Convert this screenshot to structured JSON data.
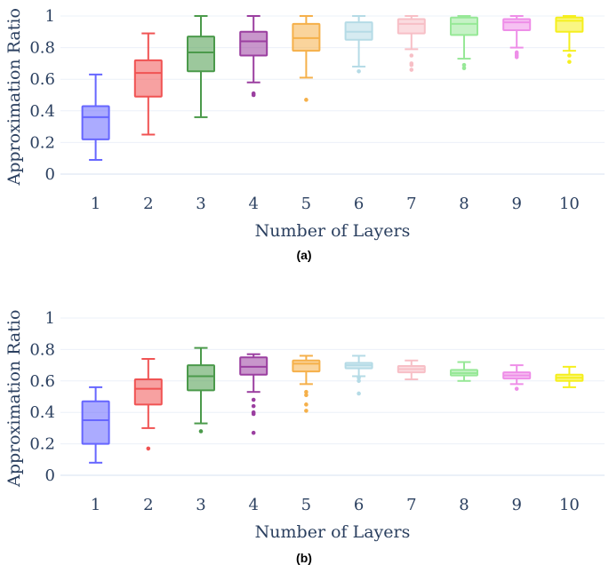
{
  "chart_data": [
    {
      "type": "box",
      "caption": "(a)",
      "xlabel": "Number of Layers",
      "ylabel": "Approximation Ratio",
      "categories": [
        "1",
        "2",
        "3",
        "4",
        "5",
        "6",
        "7",
        "8",
        "9",
        "10"
      ],
      "yticks": [
        "0",
        "0.2",
        "0.4",
        "0.6",
        "0.8",
        "1"
      ],
      "ylim": [
        -0.06,
        1.04
      ],
      "grid": true,
      "boxes": [
        {
          "min": 0.09,
          "q1": 0.22,
          "median": 0.36,
          "q3": 0.43,
          "max": 0.63,
          "outliers": [],
          "color": "#6666ff"
        },
        {
          "min": 0.25,
          "q1": 0.49,
          "median": 0.64,
          "q3": 0.72,
          "max": 0.89,
          "outliers": [],
          "color": "#f05353"
        },
        {
          "min": 0.36,
          "q1": 0.65,
          "median": 0.77,
          "q3": 0.87,
          "max": 1.0,
          "outliers": [],
          "color": "#4b9a4b"
        },
        {
          "min": 0.58,
          "q1": 0.75,
          "median": 0.84,
          "q3": 0.9,
          "max": 1.0,
          "outliers": [
            0.5,
            0.51
          ],
          "color": "#9b3fa0"
        },
        {
          "min": 0.61,
          "q1": 0.78,
          "median": 0.86,
          "q3": 0.95,
          "max": 1.0,
          "outliers": [
            0.47
          ],
          "color": "#f5b04a"
        },
        {
          "min": 0.68,
          "q1": 0.85,
          "median": 0.9,
          "q3": 0.96,
          "max": 1.0,
          "outliers": [
            0.65
          ],
          "color": "#b5dbe6"
        },
        {
          "min": 0.79,
          "q1": 0.89,
          "median": 0.95,
          "q3": 0.98,
          "max": 1.0,
          "outliers": [
            0.66,
            0.69,
            0.7,
            0.75
          ],
          "color": "#f7bfc6"
        },
        {
          "min": 0.73,
          "q1": 0.88,
          "median": 0.95,
          "q3": 0.99,
          "max": 1.0,
          "outliers": [
            0.67,
            0.69
          ],
          "color": "#97e897"
        },
        {
          "min": 0.8,
          "q1": 0.91,
          "median": 0.96,
          "q3": 0.98,
          "max": 1.0,
          "outliers": [
            0.74,
            0.75,
            0.76,
            0.77
          ],
          "color": "#ee8ee8"
        },
        {
          "min": 0.78,
          "q1": 0.9,
          "median": 0.97,
          "q3": 0.99,
          "max": 1.0,
          "outliers": [
            0.71,
            0.75
          ],
          "color": "#f5ef1e"
        }
      ]
    },
    {
      "type": "box",
      "caption": "(b)",
      "xlabel": "Number of Layers",
      "ylabel": "Approximation Ratio",
      "categories": [
        "1",
        "2",
        "3",
        "4",
        "5",
        "6",
        "7",
        "8",
        "9",
        "10"
      ],
      "yticks": [
        "0",
        "0.2",
        "0.4",
        "0.6",
        "0.8",
        "1"
      ],
      "ylim": [
        -0.06,
        1.04
      ],
      "grid": true,
      "boxes": [
        {
          "min": 0.08,
          "q1": 0.2,
          "median": 0.35,
          "q3": 0.47,
          "max": 0.56,
          "outliers": [],
          "color": "#6666ff"
        },
        {
          "min": 0.3,
          "q1": 0.45,
          "median": 0.55,
          "q3": 0.61,
          "max": 0.74,
          "outliers": [
            0.17
          ],
          "color": "#f05353"
        },
        {
          "min": 0.33,
          "q1": 0.54,
          "median": 0.63,
          "q3": 0.7,
          "max": 0.81,
          "outliers": [
            0.28
          ],
          "color": "#4b9a4b"
        },
        {
          "min": 0.53,
          "q1": 0.64,
          "median": 0.69,
          "q3": 0.75,
          "max": 0.77,
          "outliers": [
            0.27,
            0.39,
            0.4,
            0.44,
            0.48
          ],
          "color": "#9b3fa0"
        },
        {
          "min": 0.58,
          "q1": 0.66,
          "median": 0.71,
          "q3": 0.73,
          "max": 0.76,
          "outliers": [
            0.41,
            0.45,
            0.51,
            0.53
          ],
          "color": "#f5b04a"
        },
        {
          "min": 0.63,
          "q1": 0.68,
          "median": 0.7,
          "q3": 0.715,
          "max": 0.76,
          "outliers": [
            0.52,
            0.6,
            0.62
          ],
          "color": "#b5dbe6"
        },
        {
          "min": 0.61,
          "q1": 0.655,
          "median": 0.675,
          "q3": 0.695,
          "max": 0.73,
          "outliers": [],
          "color": "#f7bfc6"
        },
        {
          "min": 0.6,
          "q1": 0.635,
          "median": 0.65,
          "q3": 0.67,
          "max": 0.72,
          "outliers": [],
          "color": "#97e897"
        },
        {
          "min": 0.58,
          "q1": 0.615,
          "median": 0.635,
          "q3": 0.655,
          "max": 0.7,
          "outliers": [
            0.55
          ],
          "color": "#ee8ee8"
        },
        {
          "min": 0.56,
          "q1": 0.6,
          "median": 0.62,
          "q3": 0.64,
          "max": 0.69,
          "outliers": [],
          "color": "#f5ef1e"
        }
      ]
    }
  ]
}
